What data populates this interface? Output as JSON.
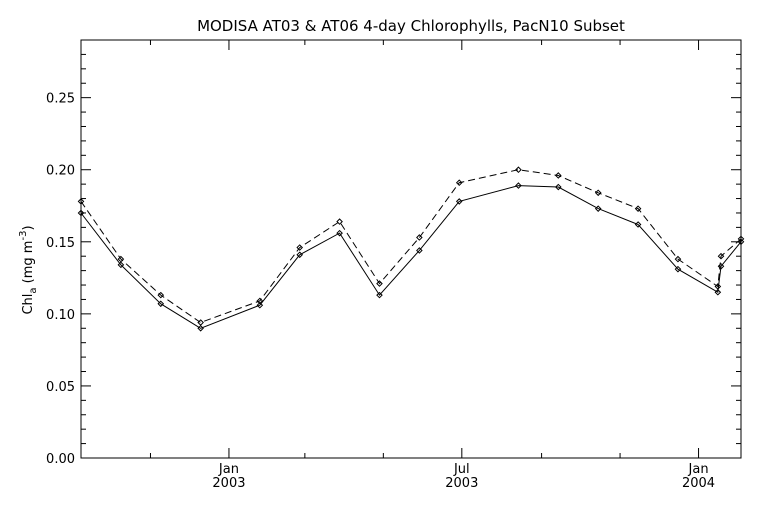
{
  "chart_data": {
    "type": "line",
    "title": "MODISA AT03 & AT06 4-day Chlorophylls, PacN10 Subset",
    "ylabel": {
      "base": "Chl",
      "subscript": "a",
      "units_open": " (mg m",
      "superscript": "-3",
      "units_close": ")"
    },
    "xlabel": "",
    "ylim": [
      0.0,
      0.29
    ],
    "xlim": [
      "2002-09-08",
      "2004-02-03"
    ],
    "yticks": [
      "0.00",
      "0.05",
      "0.10",
      "0.15",
      "0.20",
      "0.25"
    ],
    "xticks": [
      {
        "month": "Jan",
        "year": "2003",
        "date": "2003-01-01"
      },
      {
        "month": "Jul",
        "year": "2003",
        "date": "2003-07-01"
      },
      {
        "month": "Jan",
        "year": "2004",
        "date": "2004-01-01"
      }
    ],
    "grid": false,
    "legend": "none",
    "series": [
      {
        "line_style": "solid",
        "marker": "diamond",
        "color": "#000000",
        "points": [
          {
            "x": "2002-09-08",
            "y": 0.17
          },
          {
            "x": "2002-10-09",
            "y": 0.134
          },
          {
            "x": "2002-11-09",
            "y": 0.107
          },
          {
            "x": "2002-12-10",
            "y": 0.09
          },
          {
            "x": "2003-01-25",
            "y": 0.106
          },
          {
            "x": "2003-02-25",
            "y": 0.141
          },
          {
            "x": "2003-03-28",
            "y": 0.156
          },
          {
            "x": "2003-04-28",
            "y": 0.113
          },
          {
            "x": "2003-05-29",
            "y": 0.144
          },
          {
            "x": "2003-06-29",
            "y": 0.178
          },
          {
            "x": "2003-08-14",
            "y": 0.189
          },
          {
            "x": "2003-09-14",
            "y": 0.188
          },
          {
            "x": "2003-10-15",
            "y": 0.173
          },
          {
            "x": "2003-11-15",
            "y": 0.162
          },
          {
            "x": "2003-12-16",
            "y": 0.131
          },
          {
            "x": "2004-01-16",
            "y": 0.115
          },
          {
            "x": "2004-02-03",
            "y": 0.133
          },
          {
            "x": "2004-02-03",
            "y": 0.15
          }
        ]
      },
      {
        "line_style": "dashed",
        "marker": "diamond",
        "color": "#000000",
        "points": [
          {
            "x": "2002-09-08",
            "y": 0.178
          },
          {
            "x": "2002-10-09",
            "y": 0.138
          },
          {
            "x": "2002-11-09",
            "y": 0.113
          },
          {
            "x": "2002-12-10",
            "y": 0.094
          },
          {
            "x": "2003-01-25",
            "y": 0.109
          },
          {
            "x": "2003-02-25",
            "y": 0.146
          },
          {
            "x": "2003-03-28",
            "y": 0.164
          },
          {
            "x": "2003-04-28",
            "y": 0.121
          },
          {
            "x": "2003-05-29",
            "y": 0.153
          },
          {
            "x": "2003-06-29",
            "y": 0.191
          },
          {
            "x": "2003-08-14",
            "y": 0.2
          },
          {
            "x": "2003-09-14",
            "y": 0.196
          },
          {
            "x": "2003-10-15",
            "y": 0.184
          },
          {
            "x": "2003-11-15",
            "y": 0.173
          },
          {
            "x": "2003-12-16",
            "y": 0.138
          },
          {
            "x": "2004-01-16",
            "y": 0.119
          },
          {
            "x": "2004-02-03",
            "y": 0.14
          },
          {
            "x": "2004-02-03",
            "y": 0.152
          }
        ]
      }
    ]
  }
}
